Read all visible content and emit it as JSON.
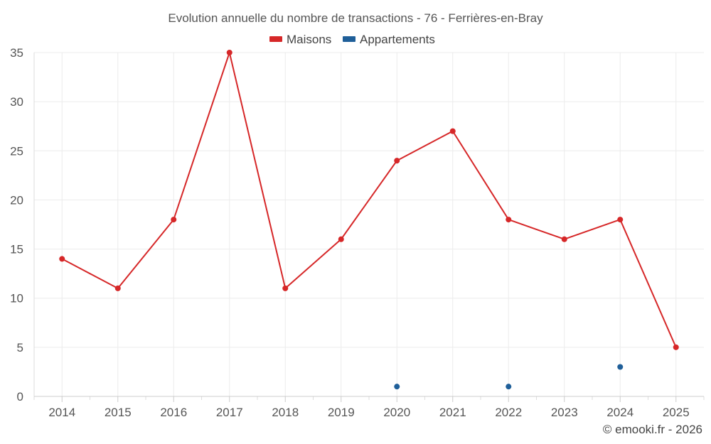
{
  "chart_data": {
    "type": "line",
    "title": "Evolution annuelle du nombre de transactions - 76 - Ferrières-en-Bray",
    "categories": [
      "2014",
      "2015",
      "2016",
      "2017",
      "2018",
      "2019",
      "2020",
      "2021",
      "2022",
      "2023",
      "2024",
      "2025"
    ],
    "series": [
      {
        "name": "Maisons",
        "color": "#d62728",
        "values": [
          14,
          11,
          18,
          35,
          11,
          16,
          24,
          27,
          18,
          16,
          18,
          5
        ]
      },
      {
        "name": "Appartements",
        "color": "#1f5f99",
        "values": [
          null,
          null,
          null,
          null,
          null,
          null,
          1,
          null,
          1,
          null,
          3,
          null
        ]
      }
    ],
    "ylim": [
      0,
      35
    ],
    "yticks": [
      0,
      5,
      10,
      15,
      20,
      25,
      30,
      35
    ],
    "xlabel": "",
    "ylabel": "",
    "grid": true,
    "legend_position": "top-center"
  },
  "credit": "© emooki.fr - 2026"
}
